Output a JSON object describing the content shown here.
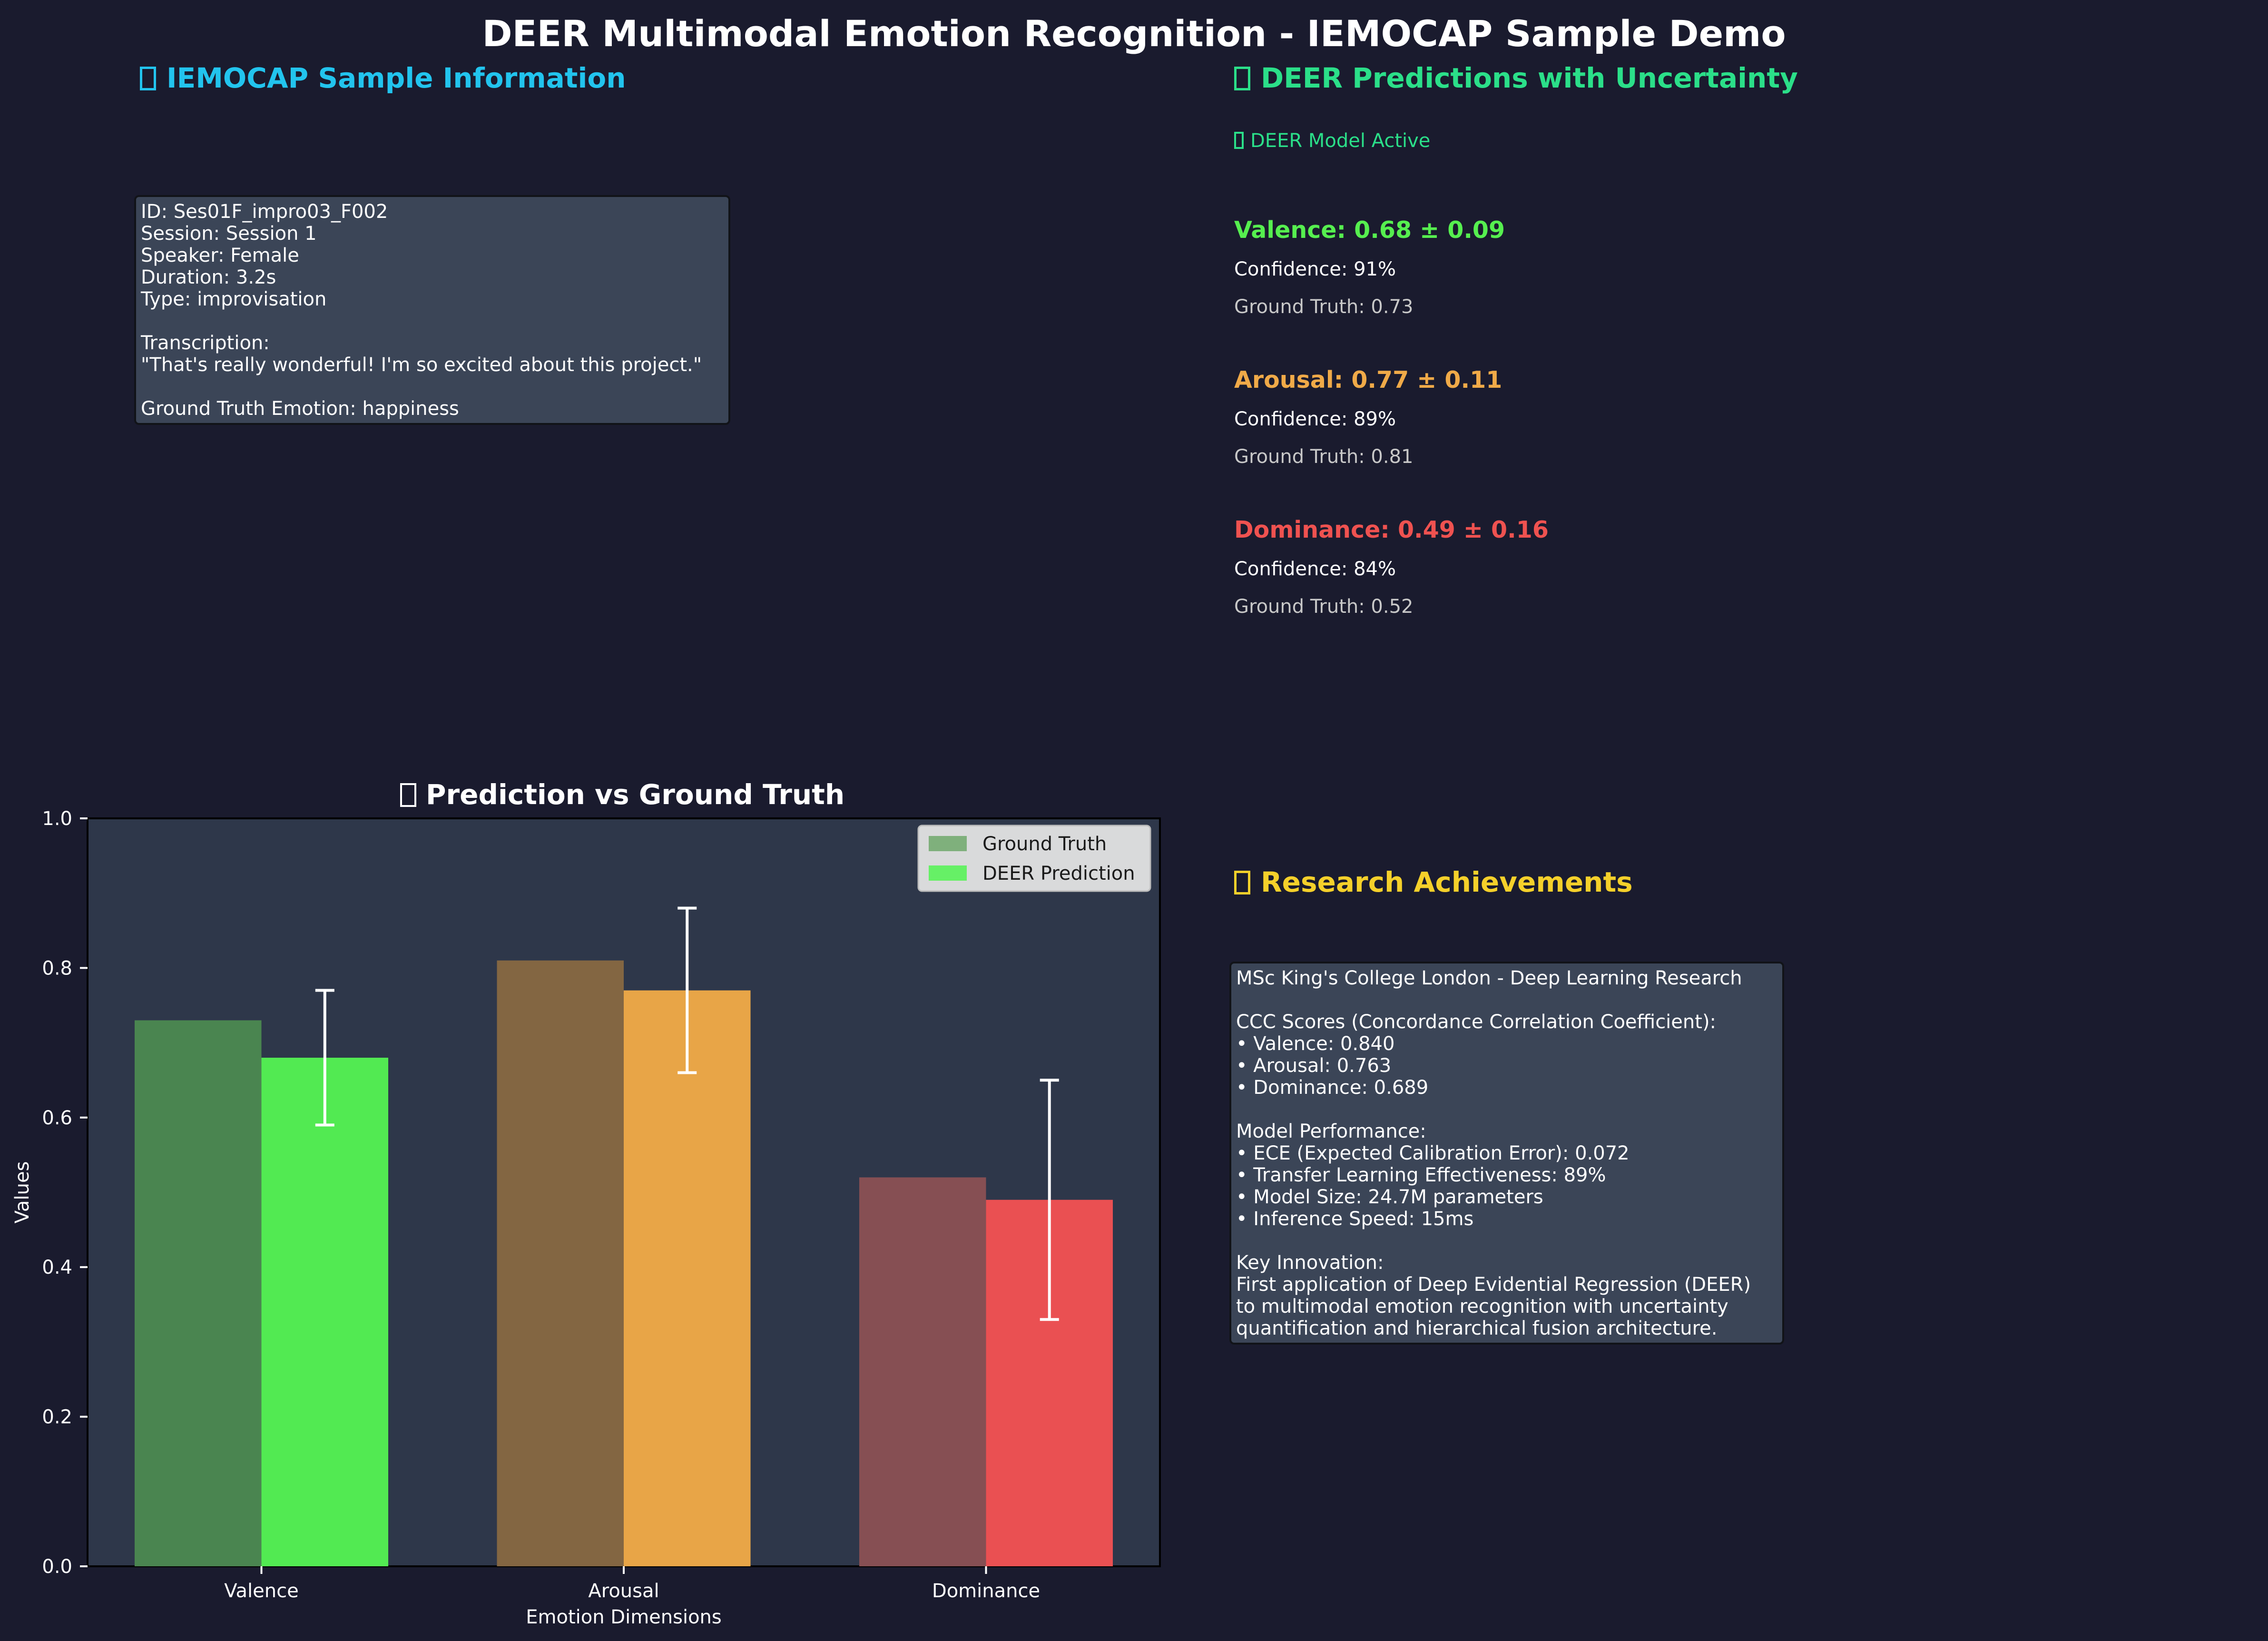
{
  "title": "DEER Multimodal Emotion Recognition - IEMOCAP Sample Demo",
  "sample_info": {
    "heading": "IEMOCAP Sample Information",
    "heading_color": "#22c4ee",
    "box_text": "ID: Ses01F_impro03_F002\nSession: Session 1\nSpeaker: Female\nDuration: 3.2s\nType: improvisation\n\nTranscription:\n\"That's really wonderful! I'm so excited about this project.\"\n\nGround Truth Emotion: happiness"
  },
  "predictions": {
    "heading": "DEER Predictions with Uncertainty",
    "heading_color": "#2bdf89",
    "status": "DEER Model Active",
    "items": [
      {
        "head": "Valence: 0.68 ± 0.09",
        "confidence": "Confidence: 91%",
        "ground_truth": "Ground Truth: 0.73",
        "color": "#56ef4f"
      },
      {
        "head": "Arousal: 0.77 ± 0.11",
        "confidence": "Confidence: 89%",
        "ground_truth": "Ground Truth: 0.81",
        "color": "#f0aa48"
      },
      {
        "head": "Dominance: 0.49 ± 0.16",
        "confidence": "Confidence: 84%",
        "ground_truth": "Ground Truth: 0.52",
        "color": "#ef5250"
      }
    ]
  },
  "research": {
    "heading": "Research Achievements",
    "heading_color": "#f5d02a",
    "box_text": "MSc King's College London - Deep Learning Research\n\nCCC Scores (Concordance Correlation Coefficient):\n• Valence: 0.840\n• Arousal: 0.763\n• Dominance: 0.689\n\nModel Performance:\n• ECE (Expected Calibration Error): 0.072\n• Transfer Learning Effectiveness: 89%\n• Model Size: 24.7M parameters\n• Inference Speed: 15ms\n\nKey Innovation:\nFirst application of Deep Evidential Regression (DEER)\nto multimodal emotion recognition with uncertainty\nquantification and hierarchical fusion architecture."
  },
  "chart_data": {
    "type": "bar",
    "title": "Prediction vs Ground Truth",
    "xlabel": "Emotion Dimensions",
    "ylabel": "Values",
    "categories": [
      "Valence",
      "Arousal",
      "Dominance"
    ],
    "ylim": [
      0,
      1.0
    ],
    "yticks": [
      "0.0",
      "0.2",
      "0.4",
      "0.6",
      "0.8",
      "1.0"
    ],
    "legend_position": "top-right",
    "series": [
      {
        "name": "Ground Truth",
        "values": [
          0.73,
          0.81,
          0.52
        ],
        "colors": [
          "#4a8550",
          "#836642",
          "#864f53"
        ],
        "legend_color": "#7fb07c"
      },
      {
        "name": "DEER Prediction",
        "values": [
          0.68,
          0.77,
          0.49
        ],
        "errors": [
          0.09,
          0.11,
          0.16
        ],
        "colors": [
          "#52ea52",
          "#e8a547",
          "#ea5052"
        ],
        "legend_color": "#66f066"
      }
    ],
    "grid": false
  }
}
